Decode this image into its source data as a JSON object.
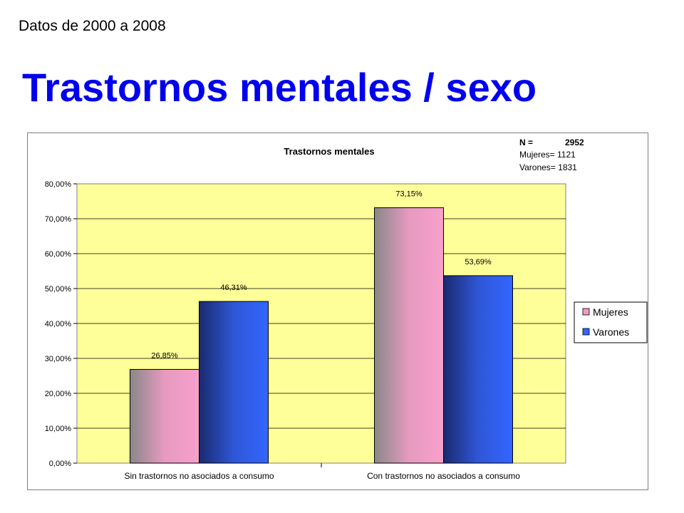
{
  "header": {
    "subtitle": "Datos de 2000 a 2008",
    "title": "Trastornos mentales / sexo"
  },
  "chart_data": {
    "type": "bar",
    "title": "Trastornos mentales",
    "categories": [
      "Sin trastornos no asociados a consumo",
      "Con trastornos no asociados a consumo"
    ],
    "series": [
      {
        "name": "Mujeres",
        "values": [
          26.85,
          73.15
        ],
        "labels": [
          "26,85%",
          "73,15%"
        ],
        "color": "#f49ac2"
      },
      {
        "name": "Varones",
        "values": [
          46.31,
          53.69
        ],
        "labels": [
          "46,31%",
          "53,69%"
        ],
        "color": "#3366ff"
      }
    ],
    "ylim": [
      0,
      80
    ],
    "yticks": [
      "0,00%",
      "10,00%",
      "20,00%",
      "30,00%",
      "40,00%",
      "50,00%",
      "60,00%",
      "70,00%",
      "80,00%"
    ],
    "xlabel": "",
    "ylabel": "",
    "grid": true,
    "legend": "right",
    "plot_background": "#ffff99",
    "annotation": {
      "n_label": "N =",
      "n_value": "2952",
      "mujeres": "Mujeres= 1121",
      "varones": "Varones= 1831"
    }
  }
}
